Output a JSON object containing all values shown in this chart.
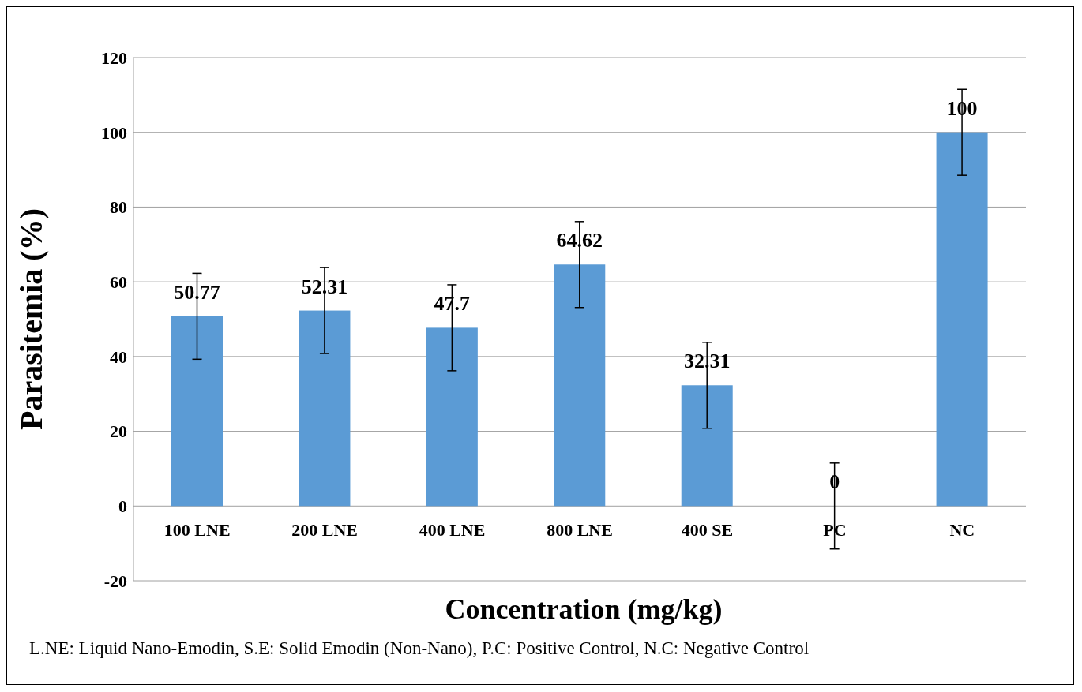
{
  "chart_data": {
    "type": "bar",
    "xlabel": "Concentration (mg/kg)",
    "ylabel": "Parasitemia (%)",
    "categories": [
      "100 LNE",
      "200 LNE",
      "400 LNE",
      "800 LNE",
      "400 SE",
      "PC",
      "NC"
    ],
    "values": [
      50.77,
      52.31,
      47.7,
      64.62,
      32.31,
      0,
      100
    ],
    "errors": [
      11.5,
      11.5,
      11.5,
      11.5,
      11.5,
      11.5,
      11.5
    ],
    "color": "#5b9bd5",
    "data_labels": true,
    "ylim": [
      -20,
      120
    ],
    "yticks": [
      -20,
      0,
      20,
      40,
      60,
      80,
      100,
      120
    ],
    "grid": "y",
    "annotations": [
      "L.NE: Liquid Nano-Emodin, S.E: Solid Emodin (Non-Nano), P.C: Positive Control, N.C: Negative Control"
    ]
  }
}
